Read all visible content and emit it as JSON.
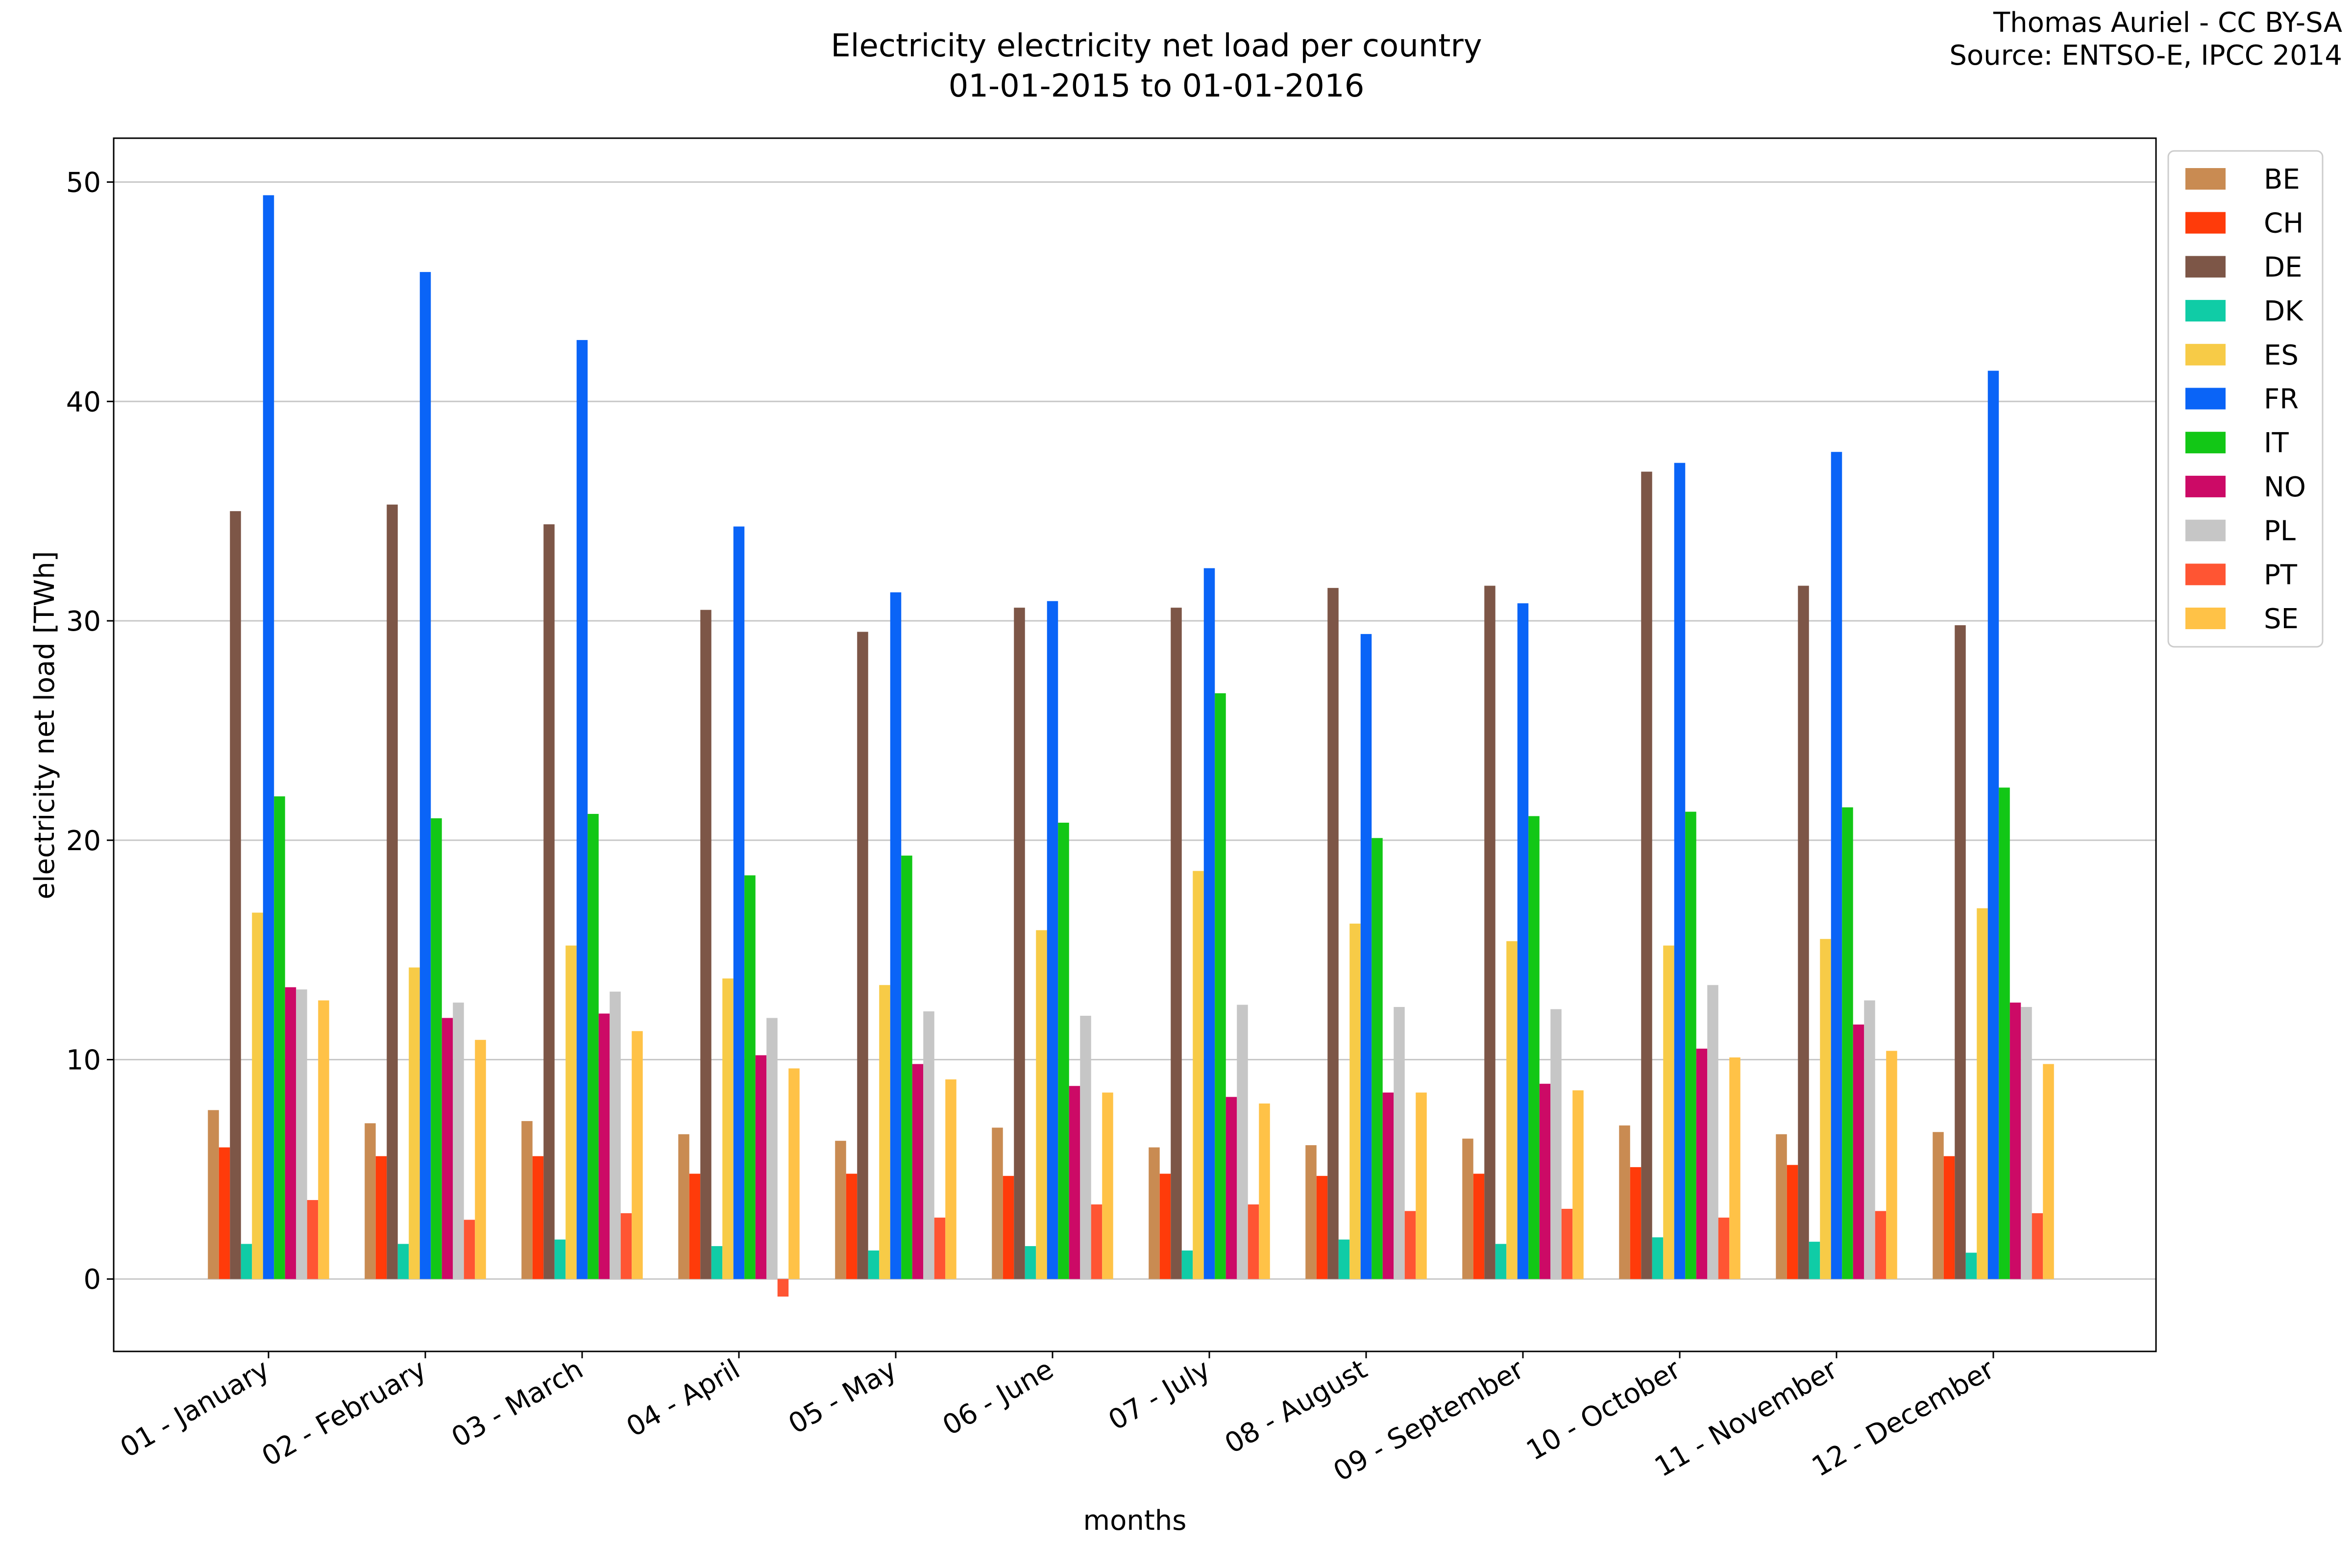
{
  "credit": {
    "line1": "Thomas Auriel - CC BY-SA",
    "line2": "Source: ENTSO-E, IPCC 2014"
  },
  "chart_data": {
    "type": "bar",
    "title": "Electricity electricity net load per country",
    "subtitle": "01-01-2015 to 01-01-2016",
    "xlabel": "months",
    "ylabel": "electricity net load [TWh]",
    "ylim": [
      -3.3,
      52
    ],
    "yticks": [
      0,
      10,
      20,
      30,
      40,
      50
    ],
    "grid": "horizontal",
    "legend_position": "outside-right-top",
    "categories": [
      "01 - January",
      "02 - February",
      "03 - March",
      "04 - April",
      "05 - May",
      "06 - June",
      "07 - July",
      "08 - August",
      "09 - September",
      "10 - October",
      "11 - November",
      "12 - December"
    ],
    "series": [
      {
        "name": "BE",
        "color": "#c98b52",
        "values": [
          7.7,
          7.1,
          7.2,
          6.6,
          6.3,
          6.9,
          6.0,
          6.1,
          6.4,
          7.0,
          6.6,
          6.7
        ]
      },
      {
        "name": "CH",
        "color": "#ff3b0a",
        "values": [
          6.0,
          5.6,
          5.6,
          4.8,
          4.8,
          4.7,
          4.8,
          4.7,
          4.8,
          5.1,
          5.2,
          5.6
        ]
      },
      {
        "name": "DE",
        "color": "#7d5647",
        "values": [
          35.0,
          35.3,
          34.4,
          30.5,
          29.5,
          30.6,
          30.6,
          31.5,
          31.6,
          36.8,
          31.6,
          29.8
        ]
      },
      {
        "name": "DK",
        "color": "#10cca6",
        "values": [
          1.6,
          1.6,
          1.8,
          1.5,
          1.3,
          1.5,
          1.3,
          1.8,
          1.6,
          1.9,
          1.7,
          1.2
        ]
      },
      {
        "name": "ES",
        "color": "#f7cb47",
        "values": [
          16.7,
          14.2,
          15.2,
          13.7,
          13.4,
          15.9,
          18.6,
          16.2,
          15.4,
          15.2,
          15.5,
          16.9
        ]
      },
      {
        "name": "FR",
        "color": "#0a64f7",
        "values": [
          49.4,
          45.9,
          42.8,
          34.3,
          31.3,
          30.9,
          32.4,
          29.4,
          30.8,
          37.2,
          37.7,
          41.4
        ]
      },
      {
        "name": "IT",
        "color": "#12c716",
        "values": [
          22.0,
          21.0,
          21.2,
          18.4,
          19.3,
          20.8,
          26.7,
          20.1,
          21.1,
          21.3,
          21.5,
          22.4
        ]
      },
      {
        "name": "NO",
        "color": "#cc0a66",
        "values": [
          13.3,
          11.9,
          12.1,
          10.2,
          9.8,
          8.8,
          8.3,
          8.5,
          8.9,
          10.5,
          11.6,
          12.6
        ]
      },
      {
        "name": "PL",
        "color": "#c6c6c6",
        "values": [
          13.2,
          12.6,
          13.1,
          11.9,
          12.2,
          12.0,
          12.5,
          12.4,
          12.3,
          13.4,
          12.7,
          12.4
        ]
      },
      {
        "name": "PT",
        "color": "#ff5533",
        "values": [
          3.6,
          2.7,
          3.0,
          -0.8,
          2.8,
          3.4,
          3.4,
          3.1,
          3.2,
          2.8,
          3.1,
          3.0
        ]
      },
      {
        "name": "SE",
        "color": "#ffc247",
        "values": [
          12.7,
          10.9,
          11.3,
          9.6,
          9.1,
          8.5,
          8.0,
          8.5,
          8.6,
          10.1,
          10.4,
          9.8
        ]
      }
    ]
  }
}
